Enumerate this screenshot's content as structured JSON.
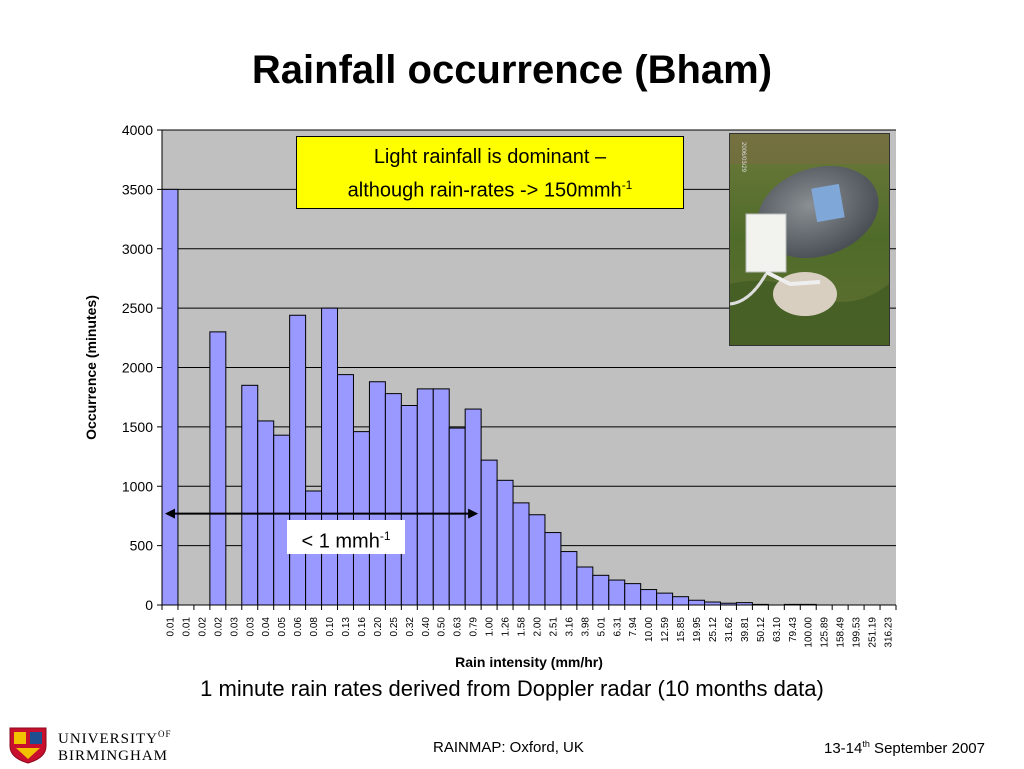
{
  "slide": {
    "title": "Rainfall occurrence (Bham)",
    "caption": "1 minute rain rates derived from Doppler radar (10 months data)",
    "footer_center": "RAINMAP: Oxford, UK",
    "footer_right_pre": "13-14",
    "footer_right_sup": "th",
    "footer_right_post": " September 2007",
    "logo_line1": "UNIVERSITY",
    "logo_of": "OF",
    "logo_line2": "BIRMINGHAM",
    "photo_stamp": "2006/03/29",
    "annotation_line1": "Light rainfall is dominant –",
    "annotation_line2_pre": "although rain-rates -> 150mmh",
    "annotation_line2_sup": "-1",
    "range_label_pre": "< 1 mmh",
    "range_label_sup": "-1"
  },
  "colors": {
    "plot_bg": "#c0c0c0",
    "bar_fill": "#9999ff",
    "annotation_bg": "#ffff00"
  },
  "chart_data": {
    "type": "bar",
    "xlabel": "Rain intensity (mm/hr)",
    "ylabel": "Occurrence (minutes)",
    "ylim": [
      0,
      4000
    ],
    "yticks": [
      0,
      500,
      1000,
      1500,
      2000,
      2500,
      3000,
      3500,
      4000
    ],
    "grid": true,
    "categories": [
      "0.01",
      "0.01",
      "0.02",
      "0.02",
      "0.03",
      "0.03",
      "0.04",
      "0.05",
      "0.06",
      "0.08",
      "0.10",
      "0.13",
      "0.16",
      "0.20",
      "0.25",
      "0.32",
      "0.40",
      "0.50",
      "0.63",
      "0.79",
      "1.00",
      "1.26",
      "1.58",
      "2.00",
      "2.51",
      "3.16",
      "3.98",
      "5.01",
      "6.31",
      "7.94",
      "10.00",
      "12.59",
      "15.85",
      "19.95",
      "25.12",
      "31.62",
      "39.81",
      "50.12",
      "63.10",
      "79.43",
      "100.00",
      "125.89",
      "158.49",
      "199.53",
      "251.19",
      "316.23"
    ],
    "values": [
      3500,
      0,
      0,
      2300,
      0,
      1850,
      1550,
      1430,
      2440,
      960,
      2500,
      1940,
      1460,
      1880,
      1780,
      1680,
      1820,
      1820,
      1490,
      1650,
      1220,
      1050,
      860,
      760,
      610,
      450,
      320,
      250,
      210,
      180,
      130,
      100,
      70,
      40,
      25,
      15,
      20,
      5,
      0,
      5,
      5,
      0,
      0,
      0,
      0,
      0
    ],
    "range_annotation": {
      "from_category": "0.01",
      "to_category": "0.79"
    }
  }
}
